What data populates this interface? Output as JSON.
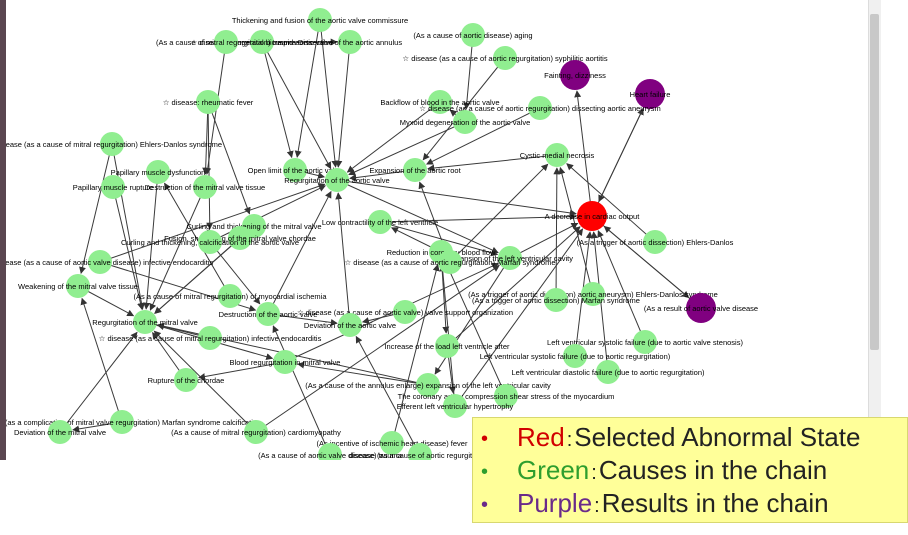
{
  "colors": {
    "red": "#ff0000",
    "green": "#90ee90",
    "purple": "#800080",
    "legend_bg": "#ffff99"
  },
  "legend": [
    {
      "bullet": "•",
      "word": "Red",
      "sep": ":",
      "text": "Selected Abnormal State",
      "color": "#d10000",
      "bullet_color": "#d10000"
    },
    {
      "bullet": "•",
      "word": "Green",
      "sep": ":",
      "text": "Causes in the chain",
      "color": "#2e9e2e",
      "bullet_color": "#2e9e2e"
    },
    {
      "bullet": "•",
      "word": "Purple",
      "sep": ":",
      "text": "Results in the chain",
      "color": "#6a2a8a",
      "bullet_color": "#6a2a8a"
    }
  ],
  "nodes": [
    {
      "id": "n1",
      "label": "Thickening and fusion of the aortic valve commissure",
      "kind": "cause"
    },
    {
      "id": "n2",
      "label": "☆ disease: congenital bicuspid aortic valve",
      "kind": "cause"
    },
    {
      "id": "n3",
      "label": "Dissection of the aortic annulus",
      "kind": "cause"
    },
    {
      "id": "n4",
      "label": "(As a cause of mitral regurgitation) trauma",
      "kind": "cause"
    },
    {
      "id": "n5",
      "label": "(As a cause of aortic disease) aging",
      "kind": "cause"
    },
    {
      "id": "n6",
      "label": "☆ disease (as a cause of aortic regurgitation) syphilitic aortitis",
      "kind": "cause"
    },
    {
      "id": "n7",
      "label": "Fainting, dizziness",
      "kind": "result"
    },
    {
      "id": "n8",
      "label": "Heart failure",
      "kind": "result"
    },
    {
      "id": "n9",
      "label": "☆ disease: rheumatic fever",
      "kind": "cause"
    },
    {
      "id": "n10",
      "label": "Backflow of blood in the aortic valve",
      "kind": "cause"
    },
    {
      "id": "n11",
      "label": "☆ disease (as a cause of aortic regurgitation) dissecting aortic aneurysm",
      "kind": "cause"
    },
    {
      "id": "n12",
      "label": "Myxoid degeneration of the aortic valve",
      "kind": "cause"
    },
    {
      "id": "n13",
      "label": "sease (as a cause of mitral regurgitation) Ehlers-Danlos syndrome",
      "kind": "cause"
    },
    {
      "id": "n14",
      "label": "Cystic medial necrosis",
      "kind": "cause"
    },
    {
      "id": "n15",
      "label": "Papillary muscle dysfunction",
      "kind": "cause"
    },
    {
      "id": "n16",
      "label": "Open limit of the aortic valve",
      "kind": "cause"
    },
    {
      "id": "n17",
      "label": "Expansion of the aortic root",
      "kind": "cause"
    },
    {
      "id": "n18",
      "label": "Regurgitation of the aortic valve",
      "kind": "cause"
    },
    {
      "id": "n19",
      "label": "Papillary muscle rupture",
      "kind": "cause"
    },
    {
      "id": "n20",
      "label": "Destruction of the mitral valve tissue",
      "kind": "cause"
    },
    {
      "id": "n21",
      "label": "A decrease in cardiac output",
      "kind": "selected"
    },
    {
      "id": "n22",
      "label": "Curling and thickening of the mitral valve",
      "kind": "cause"
    },
    {
      "id": "n23",
      "label": "Fusion, shortening of the mitral valve chordae",
      "kind": "cause"
    },
    {
      "id": "n24",
      "label": "Curling and thickening, calcification of the aortic valve",
      "kind": "cause"
    },
    {
      "id": "n25",
      "label": "Low contractility of the left ventricle",
      "kind": "cause"
    },
    {
      "id": "n26",
      "label": "(As a trigger of aortic dissection) Ehlers-Danlos",
      "kind": "cause"
    },
    {
      "id": "n27",
      "label": "Reduction in coronary blood flow",
      "kind": "cause"
    },
    {
      "id": "n28",
      "label": "Expansion of the left ventricular cavity",
      "kind": "cause"
    },
    {
      "id": "n29",
      "label": "☆ disease (as a cause of aortic valve disease) infective endocarditis",
      "kind": "cause"
    },
    {
      "id": "n30",
      "label": "☆ disease (as a cause of aortic regurgitation) Marfan syndrome",
      "kind": "cause"
    },
    {
      "id": "n31",
      "label": "Weakening of the mitral valve tissue",
      "kind": "cause"
    },
    {
      "id": "n32",
      "label": "(As a cause of mitral regurgitation) of myocardial ischemia",
      "kind": "cause"
    },
    {
      "id": "n33",
      "label": "(As a trigger of aortic dissection) aortic aneurysm) Ehlers-Danlos syndrome",
      "kind": "cause"
    },
    {
      "id": "n34",
      "label": "(As a trigger of aortic dissection) Marfan syndrome",
      "kind": "cause"
    },
    {
      "id": "n35",
      "label": "(As a result of aortic valve disease",
      "kind": "result"
    },
    {
      "id": "n36",
      "label": "Destruction of the aortic valve",
      "kind": "cause"
    },
    {
      "id": "n37",
      "label": "☆ disease (as a cause of aortic valve) valve support organization",
      "kind": "cause"
    },
    {
      "id": "n38",
      "label": "Regurgitation of the mitral valve",
      "kind": "cause"
    },
    {
      "id": "n39",
      "label": "Deviation of the aortic valve",
      "kind": "cause"
    },
    {
      "id": "n40",
      "label": "☆ disease (as a cause of mitral regurgitation) infective endocarditis",
      "kind": "cause"
    },
    {
      "id": "n41",
      "label": "Increase of the load left ventricle after",
      "kind": "cause"
    },
    {
      "id": "n42",
      "label": "Left ventricular systolic failure (due to aortic valve stenosis)",
      "kind": "cause"
    },
    {
      "id": "n43",
      "label": "Left ventricular systolic failure (due to aortic regurgitation)",
      "kind": "cause"
    },
    {
      "id": "n44",
      "label": "Blood regurgitation in mitral valve",
      "kind": "cause"
    },
    {
      "id": "n45",
      "label": "Left ventricular diastolic failure (due to aortic regurgitation)",
      "kind": "cause"
    },
    {
      "id": "n46",
      "label": "Rupture of the chordae",
      "kind": "cause"
    },
    {
      "id": "n47",
      "label": "(As a cause of the annulus enlarge) expansion of the left ventricular cavity",
      "kind": "cause"
    },
    {
      "id": "n48",
      "label": "The coronary artery compression shear stress of the myocardium",
      "kind": "cause"
    },
    {
      "id": "n49",
      "label": "Efferent left ventricular hypertrophy",
      "kind": "cause"
    },
    {
      "id": "n50",
      "label": "sease (as a complication of mitral valve regurgitation) Marfan syndrome calcification",
      "kind": "cause"
    },
    {
      "id": "n51",
      "label": "Deviation of the mitral valve",
      "kind": "cause"
    },
    {
      "id": "n52",
      "label": "(As a cause of mitral regurgitation) cardiomyopathy",
      "kind": "cause"
    },
    {
      "id": "n53",
      "label": "(As incentive of ischemic heart disease) fever",
      "kind": "cause"
    },
    {
      "id": "n54",
      "label": "(As a cause of aortic valve disease) trauma",
      "kind": "cause"
    },
    {
      "id": "n55",
      "label": "disease (as a cause of aortic regurgitation)",
      "kind": "cause"
    }
  ]
}
